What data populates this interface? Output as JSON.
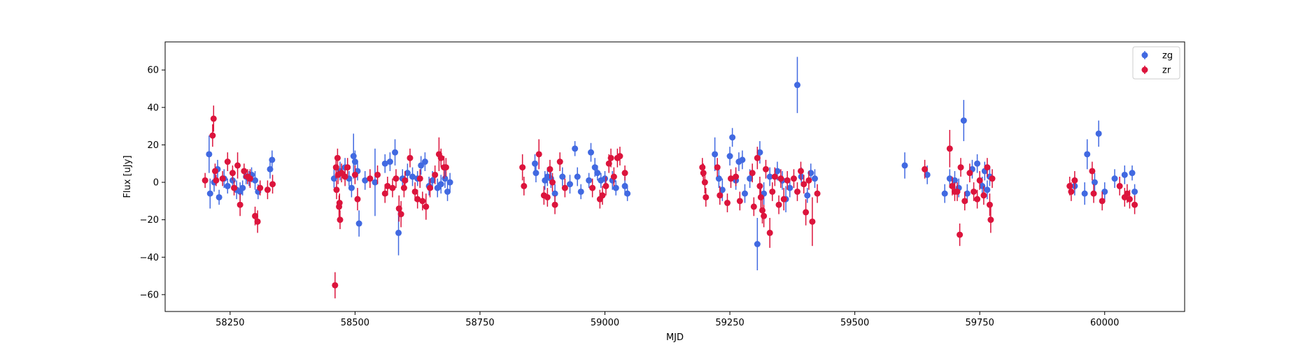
{
  "chart_data": {
    "type": "scatter",
    "title": "",
    "xlabel": "MJD",
    "ylabel": "Flux [uJy]",
    "xlim": [
      58120,
      60160
    ],
    "ylim": [
      -69,
      75
    ],
    "xticks": [
      58250,
      58500,
      58750,
      59000,
      59250,
      59500,
      59750,
      60000
    ],
    "xtick_labels": [
      "58250",
      "58500",
      "58750",
      "59000",
      "59250",
      "59500",
      "59750",
      "60000"
    ],
    "yticks": [
      -60,
      -40,
      -20,
      0,
      20,
      40,
      60
    ],
    "ytick_labels": [
      "−60",
      "−40",
      "−20",
      "0",
      "20",
      "40",
      "60"
    ],
    "grid": false,
    "error_bars": true,
    "legend_position": "top-right",
    "series": [
      {
        "name": "zg",
        "color": "#4169e1",
        "points": [
          [
            58208,
            15,
            10
          ],
          [
            58210,
            -6,
            8
          ],
          [
            58218,
            0,
            5
          ],
          [
            58225,
            7,
            5
          ],
          [
            58228,
            -8,
            4
          ],
          [
            58238,
            2,
            5
          ],
          [
            58245,
            -2,
            4
          ],
          [
            58255,
            1,
            5
          ],
          [
            58263,
            -4,
            5
          ],
          [
            58270,
            -5,
            5
          ],
          [
            58275,
            -3,
            4
          ],
          [
            58282,
            3,
            4
          ],
          [
            58288,
            2,
            4
          ],
          [
            58293,
            4,
            4
          ],
          [
            58300,
            1,
            5
          ],
          [
            58306,
            -5,
            4
          ],
          [
            58330,
            7,
            5
          ],
          [
            58334,
            12,
            5
          ],
          [
            58458,
            2,
            5
          ],
          [
            58470,
            6,
            5
          ],
          [
            58480,
            8,
            5
          ],
          [
            58488,
            2,
            4
          ],
          [
            58493,
            -3,
            5
          ],
          [
            58497,
            14,
            12
          ],
          [
            58500,
            11,
            6
          ],
          [
            58505,
            6,
            5
          ],
          [
            58508,
            -22,
            7
          ],
          [
            58520,
            1,
            5
          ],
          [
            58540,
            0,
            18
          ],
          [
            58560,
            10,
            5
          ],
          [
            58570,
            11,
            5
          ],
          [
            58580,
            16,
            7
          ],
          [
            58587,
            -27,
            12
          ],
          [
            58595,
            2,
            5
          ],
          [
            58605,
            5,
            5
          ],
          [
            58615,
            3,
            5
          ],
          [
            58625,
            2,
            4
          ],
          [
            58632,
            9,
            5
          ],
          [
            58640,
            11,
            5
          ],
          [
            58648,
            -2,
            5
          ],
          [
            58655,
            1,
            5
          ],
          [
            58665,
            -3,
            5
          ],
          [
            58672,
            -1,
            5
          ],
          [
            58680,
            2,
            5
          ],
          [
            58685,
            -5,
            5
          ],
          [
            58690,
            0,
            5
          ],
          [
            58860,
            10,
            5
          ],
          [
            58862,
            5,
            5
          ],
          [
            58880,
            1,
            5
          ],
          [
            58885,
            3,
            5
          ],
          [
            58892,
            2,
            5
          ],
          [
            58900,
            -6,
            5
          ],
          [
            58915,
            3,
            5
          ],
          [
            58930,
            -1,
            5
          ],
          [
            58940,
            18,
            4
          ],
          [
            58945,
            3,
            5
          ],
          [
            58952,
            -5,
            4
          ],
          [
            58968,
            1,
            4
          ],
          [
            58972,
            16,
            5
          ],
          [
            58980,
            8,
            5
          ],
          [
            58985,
            5,
            4
          ],
          [
            58992,
            1,
            4
          ],
          [
            59000,
            2,
            4
          ],
          [
            59015,
            1,
            5
          ],
          [
            59022,
            -3,
            4
          ],
          [
            59040,
            -2,
            5
          ],
          [
            59045,
            -6,
            4
          ],
          [
            59220,
            15,
            9
          ],
          [
            59228,
            2,
            5
          ],
          [
            59235,
            -4,
            6
          ],
          [
            59250,
            14,
            5
          ],
          [
            59255,
            24,
            5
          ],
          [
            59262,
            1,
            5
          ],
          [
            59268,
            11,
            5
          ],
          [
            59275,
            12,
            5
          ],
          [
            59280,
            -6,
            5
          ],
          [
            59290,
            2,
            5
          ],
          [
            59305,
            -33,
            14
          ],
          [
            59310,
            16,
            6
          ],
          [
            59318,
            -6,
            6
          ],
          [
            59330,
            3,
            5
          ],
          [
            59345,
            6,
            5
          ],
          [
            59355,
            1,
            5
          ],
          [
            59362,
            -9,
            7
          ],
          [
            59370,
            -3,
            5
          ],
          [
            59385,
            52,
            15
          ],
          [
            59393,
            3,
            5
          ],
          [
            59405,
            -7,
            4
          ],
          [
            59412,
            5,
            5
          ],
          [
            59420,
            2,
            5
          ],
          [
            59600,
            9,
            7
          ],
          [
            59645,
            4,
            5
          ],
          [
            59680,
            -6,
            5
          ],
          [
            59690,
            2,
            5
          ],
          [
            59700,
            1,
            5
          ],
          [
            59708,
            -3,
            5
          ],
          [
            59718,
            33,
            11
          ],
          [
            59725,
            -6,
            5
          ],
          [
            59735,
            7,
            5
          ],
          [
            59745,
            10,
            5
          ],
          [
            59755,
            -2,
            5
          ],
          [
            59760,
            6,
            5
          ],
          [
            59765,
            -4,
            5
          ],
          [
            59770,
            3,
            5
          ],
          [
            59940,
            -2,
            5
          ],
          [
            59960,
            -6,
            6
          ],
          [
            59965,
            15,
            8
          ],
          [
            59980,
            0,
            5
          ],
          [
            59988,
            26,
            7
          ],
          [
            60000,
            -5,
            5
          ],
          [
            60020,
            2,
            5
          ],
          [
            60040,
            4,
            5
          ],
          [
            60055,
            5,
            4
          ],
          [
            60060,
            -5,
            4
          ]
        ]
      },
      {
        "name": "zr",
        "color": "#dc143c",
        "points": [
          [
            58200,
            1,
            4
          ],
          [
            58215,
            25,
            6
          ],
          [
            58217,
            34,
            7
          ],
          [
            58220,
            6,
            4
          ],
          [
            58222,
            1,
            3
          ],
          [
            58235,
            2,
            4
          ],
          [
            58245,
            11,
            5
          ],
          [
            58255,
            5,
            4
          ],
          [
            58258,
            -3,
            4
          ],
          [
            58265,
            9,
            7
          ],
          [
            58270,
            -12,
            6
          ],
          [
            58278,
            6,
            4
          ],
          [
            58285,
            3,
            4
          ],
          [
            58290,
            2,
            5
          ],
          [
            58300,
            -18,
            5
          ],
          [
            58305,
            -21,
            6
          ],
          [
            58310,
            -3,
            4
          ],
          [
            58325,
            -4,
            5
          ],
          [
            58335,
            -1,
            5
          ],
          [
            58460,
            -55,
            7
          ],
          [
            58462,
            8,
            6
          ],
          [
            58463,
            -4,
            5
          ],
          [
            58465,
            13,
            5
          ],
          [
            58466,
            4,
            5
          ],
          [
            58468,
            -13,
            6
          ],
          [
            58469,
            -11,
            5
          ],
          [
            58470,
            -20,
            5
          ],
          [
            58473,
            5,
            5
          ],
          [
            58480,
            3,
            5
          ],
          [
            58485,
            8,
            5
          ],
          [
            58500,
            4,
            5
          ],
          [
            58505,
            -9,
            6
          ],
          [
            58530,
            2,
            5
          ],
          [
            58545,
            4,
            5
          ],
          [
            58560,
            -6,
            5
          ],
          [
            58565,
            -2,
            5
          ],
          [
            58575,
            -3,
            5
          ],
          [
            58582,
            2,
            5
          ],
          [
            58588,
            -14,
            7
          ],
          [
            58592,
            -17,
            7
          ],
          [
            58598,
            -3,
            5
          ],
          [
            58600,
            1,
            5
          ],
          [
            58610,
            13,
            5
          ],
          [
            58620,
            -5,
            5
          ],
          [
            58625,
            -9,
            5
          ],
          [
            58630,
            2,
            5
          ],
          [
            58635,
            -10,
            5
          ],
          [
            58642,
            -13,
            7
          ],
          [
            58650,
            -3,
            5
          ],
          [
            58660,
            4,
            5
          ],
          [
            58668,
            15,
            9
          ],
          [
            58672,
            13,
            5
          ],
          [
            58678,
            8,
            6
          ],
          [
            58682,
            8,
            5
          ],
          [
            58835,
            8,
            7
          ],
          [
            58838,
            -2,
            5
          ],
          [
            58868,
            15,
            8
          ],
          [
            58878,
            -7,
            5
          ],
          [
            58885,
            -8,
            5
          ],
          [
            58890,
            7,
            5
          ],
          [
            58895,
            0,
            5
          ],
          [
            58900,
            -12,
            5
          ],
          [
            58910,
            11,
            5
          ],
          [
            58920,
            -3,
            5
          ],
          [
            58975,
            -3,
            5
          ],
          [
            58990,
            -9,
            5
          ],
          [
            58995,
            -7,
            5
          ],
          [
            59002,
            -2,
            5
          ],
          [
            59008,
            10,
            5
          ],
          [
            59012,
            13,
            5
          ],
          [
            59018,
            3,
            5
          ],
          [
            59025,
            13,
            5
          ],
          [
            59030,
            14,
            5
          ],
          [
            59040,
            5,
            4
          ],
          [
            59195,
            8,
            5
          ],
          [
            59197,
            5,
            5
          ],
          [
            59200,
            0,
            6
          ],
          [
            59202,
            -8,
            5
          ],
          [
            59225,
            8,
            5
          ],
          [
            59230,
            -7,
            5
          ],
          [
            59245,
            -11,
            5
          ],
          [
            59252,
            2,
            5
          ],
          [
            59262,
            3,
            5
          ],
          [
            59270,
            -10,
            5
          ],
          [
            59295,
            5,
            5
          ],
          [
            59298,
            -13,
            5
          ],
          [
            59305,
            13,
            6
          ],
          [
            59310,
            -2,
            5
          ],
          [
            59312,
            -8,
            6
          ],
          [
            59315,
            -15,
            7
          ],
          [
            59318,
            -18,
            6
          ],
          [
            59322,
            7,
            5
          ],
          [
            59330,
            -27,
            8
          ],
          [
            59335,
            -5,
            5
          ],
          [
            59340,
            3,
            5
          ],
          [
            59348,
            -12,
            5
          ],
          [
            59352,
            2,
            5
          ],
          [
            59358,
            -9,
            6
          ],
          [
            59365,
            1,
            5
          ],
          [
            59378,
            2,
            5
          ],
          [
            59385,
            -5,
            5
          ],
          [
            59392,
            6,
            5
          ],
          [
            59398,
            -1,
            5
          ],
          [
            59402,
            -16,
            7
          ],
          [
            59408,
            1,
            5
          ],
          [
            59415,
            -21,
            13
          ],
          [
            59425,
            -6,
            5
          ],
          [
            59640,
            7,
            5
          ],
          [
            59690,
            18,
            10
          ],
          [
            59695,
            -2,
            5
          ],
          [
            59700,
            -5,
            5
          ],
          [
            59705,
            -5,
            5
          ],
          [
            59710,
            -28,
            6
          ],
          [
            59712,
            8,
            5
          ],
          [
            59720,
            -10,
            5
          ],
          [
            59730,
            5,
            5
          ],
          [
            59738,
            -5,
            5
          ],
          [
            59745,
            -9,
            5
          ],
          [
            59750,
            1,
            5
          ],
          [
            59758,
            -7,
            5
          ],
          [
            59765,
            8,
            5
          ],
          [
            59770,
            -12,
            6
          ],
          [
            59772,
            -20,
            7
          ],
          [
            59775,
            2,
            5
          ],
          [
            59930,
            -2,
            5
          ],
          [
            59933,
            -5,
            5
          ],
          [
            59940,
            1,
            5
          ],
          [
            59975,
            6,
            5
          ],
          [
            59978,
            -6,
            5
          ],
          [
            59995,
            -10,
            5
          ],
          [
            60030,
            -2,
            5
          ],
          [
            60040,
            -8,
            5
          ],
          [
            60045,
            -6,
            5
          ],
          [
            60050,
            -9,
            5
          ],
          [
            60060,
            -12,
            5
          ]
        ]
      }
    ]
  }
}
